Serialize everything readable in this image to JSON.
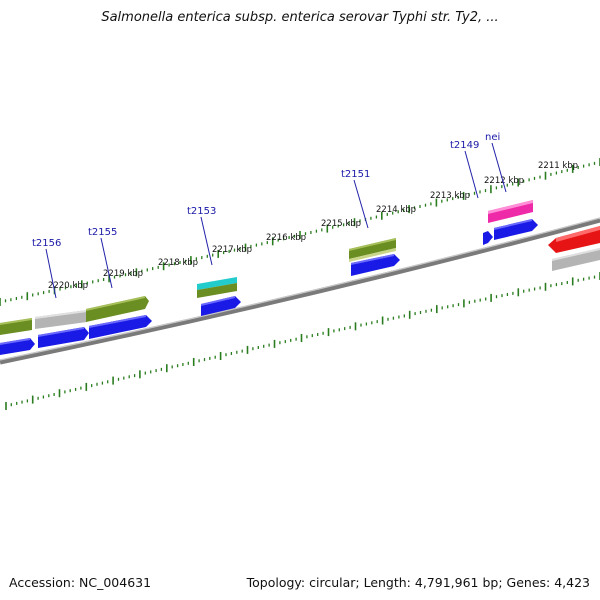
{
  "title": "Salmonella enterica subsp. enterica serovar Typhi str. Ty2, ...",
  "accession": "Accession: NC_004631",
  "summary": "Topology: circular; Length: 4,791,961 bp; Genes: 4,423",
  "colors": {
    "backbone": "#8c8c8c",
    "ticks": "#2a7d1f",
    "cds_blue": "#1a1ae6",
    "gene_green": "#6b8e23",
    "gene_gray": "#b4b4b4",
    "trna_cyan": "#22cccc",
    "trna_pink": "#ee2aa8",
    "gene_red": "#e61414",
    "label_blue": "#1a1aa8"
  },
  "kbp_labels": [
    "2211 kbp",
    "2212 kbp",
    "2213 kbp",
    "2214 kbp",
    "2215 kbp",
    "2216 kbp",
    "2217 kbp",
    "2218 kbp",
    "2219 kbp",
    "2220 kbp"
  ],
  "gene_labels": [
    "nei",
    "t2149",
    "t2151",
    "t2153",
    "t2155",
    "t2156"
  ]
}
